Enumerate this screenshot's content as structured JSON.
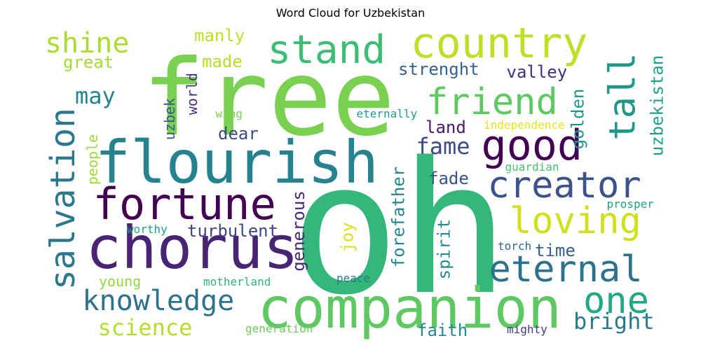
{
  "title": "Word Cloud for Uzbekistan",
  "words": [
    {
      "text": "oh",
      "color": "#35b779"
    },
    {
      "text": "free",
      "color": "#7ad151"
    },
    {
      "text": "flourish",
      "color": "#26828e"
    },
    {
      "text": "chorus",
      "color": "#482475"
    },
    {
      "text": "companion",
      "color": "#5ec962"
    },
    {
      "text": "fortune",
      "color": "#440154"
    },
    {
      "text": "country",
      "color": "#bddf26"
    },
    {
      "text": "stand",
      "color": "#3dbc74"
    },
    {
      "text": "good",
      "color": "#440154"
    },
    {
      "text": "salvation",
      "color": "#2a788e"
    },
    {
      "text": "friend",
      "color": "#5ec962"
    },
    {
      "text": "creator",
      "color": "#3b528b"
    },
    {
      "text": "loving",
      "color": "#d0e11c"
    },
    {
      "text": "eternal",
      "color": "#2c728e"
    },
    {
      "text": "tall",
      "color": "#1f988b"
    },
    {
      "text": "one",
      "color": "#22a884"
    },
    {
      "text": "knowledge",
      "color": "#2c728e"
    },
    {
      "text": "science",
      "color": "#b5de2b"
    },
    {
      "text": "shine",
      "color": "#addc30"
    },
    {
      "text": "may",
      "color": "#25858e"
    },
    {
      "text": "fame",
      "color": "#3e4989"
    },
    {
      "text": "bright",
      "color": "#287c8e"
    },
    {
      "text": "valley",
      "color": "#472d7b"
    },
    {
      "text": "strenght",
      "color": "#33638d"
    },
    {
      "text": "manly",
      "color": "#bddf26"
    },
    {
      "text": "great",
      "color": "#a5db36"
    },
    {
      "text": "made",
      "color": "#b5de2b"
    },
    {
      "text": "uzbekistan",
      "color": "#1f9e89"
    },
    {
      "text": "golden",
      "color": "#1f988b"
    },
    {
      "text": "turbulent",
      "color": "#414487"
    },
    {
      "text": "dear",
      "color": "#3e4989"
    },
    {
      "text": "land",
      "color": "#481b6d"
    },
    {
      "text": "forefather",
      "color": "#25848e"
    },
    {
      "text": "spirit",
      "color": "#228c8d"
    },
    {
      "text": "generous",
      "color": "#482878"
    },
    {
      "text": "joy",
      "color": "#d8e219"
    },
    {
      "text": "fade",
      "color": "#3b528b"
    },
    {
      "text": "time",
      "color": "#355f8d"
    },
    {
      "text": "faith",
      "color": "#23888e"
    },
    {
      "text": "people",
      "color": "#a0da39"
    },
    {
      "text": "young",
      "color": "#93d741"
    },
    {
      "text": "world",
      "color": "#46307e"
    },
    {
      "text": "uzbek",
      "color": "#38588c"
    },
    {
      "text": "wing",
      "color": "#7ad151"
    },
    {
      "text": "eternally",
      "color": "#1f9e89"
    },
    {
      "text": "independence",
      "color": "#e5e419"
    },
    {
      "text": "guardian",
      "color": "#4ac16d"
    },
    {
      "text": "prosper",
      "color": "#1fa187"
    },
    {
      "text": "worthy",
      "color": "#1fa187"
    },
    {
      "text": "torch",
      "color": "#31688e"
    },
    {
      "text": "peace",
      "color": "#2a788e"
    },
    {
      "text": "motherland",
      "color": "#2fb47c"
    },
    {
      "text": "generation",
      "color": "#6ccd5a"
    },
    {
      "text": "mighty",
      "color": "#443983"
    }
  ]
}
